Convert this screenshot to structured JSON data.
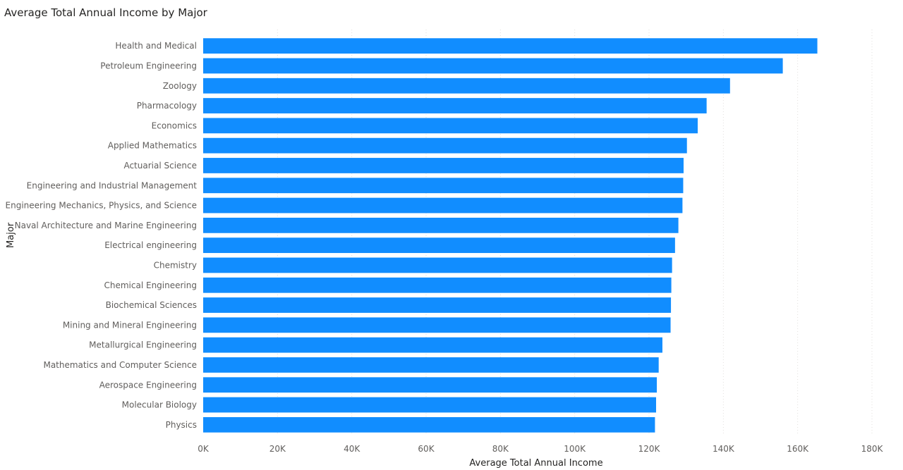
{
  "chart_data": {
    "type": "bar",
    "orientation": "horizontal",
    "title": "Average Total Annual Income by Major",
    "xlabel": "Average Total Annual Income",
    "ylabel": "Major",
    "xlim": [
      0,
      180000
    ],
    "xticks": [
      0,
      20000,
      40000,
      60000,
      80000,
      100000,
      120000,
      140000,
      160000,
      180000
    ],
    "xtick_labels": [
      "0K",
      "20K",
      "40K",
      "60K",
      "80K",
      "100K",
      "120K",
      "140K",
      "160K",
      "180K"
    ],
    "grid": true,
    "bar_color": "#118DFF",
    "categories": [
      "Health and Medical",
      "Petroleum Engineering",
      "Zoology",
      "Pharmacology",
      "Economics",
      "Applied Mathematics",
      "Actuarial Science",
      "Engineering and Industrial Management",
      "Engineering Mechanics, Physics, and Science",
      "Naval Architecture and Marine Engineering",
      "Electrical engineering",
      "Chemistry",
      "Chemical Engineering",
      "Biochemical Sciences",
      "Mining and Mineral Engineering",
      "Metallurgical Engineering",
      "Mathematics and Computer Science",
      "Aerospace Engineering",
      "Molecular Biology",
      "Physics"
    ],
    "values": [
      165300,
      156000,
      141800,
      135500,
      133100,
      130200,
      129300,
      129200,
      129000,
      127900,
      127000,
      126200,
      126000,
      125900,
      125800,
      123600,
      122600,
      122100,
      121900,
      121600
    ]
  }
}
